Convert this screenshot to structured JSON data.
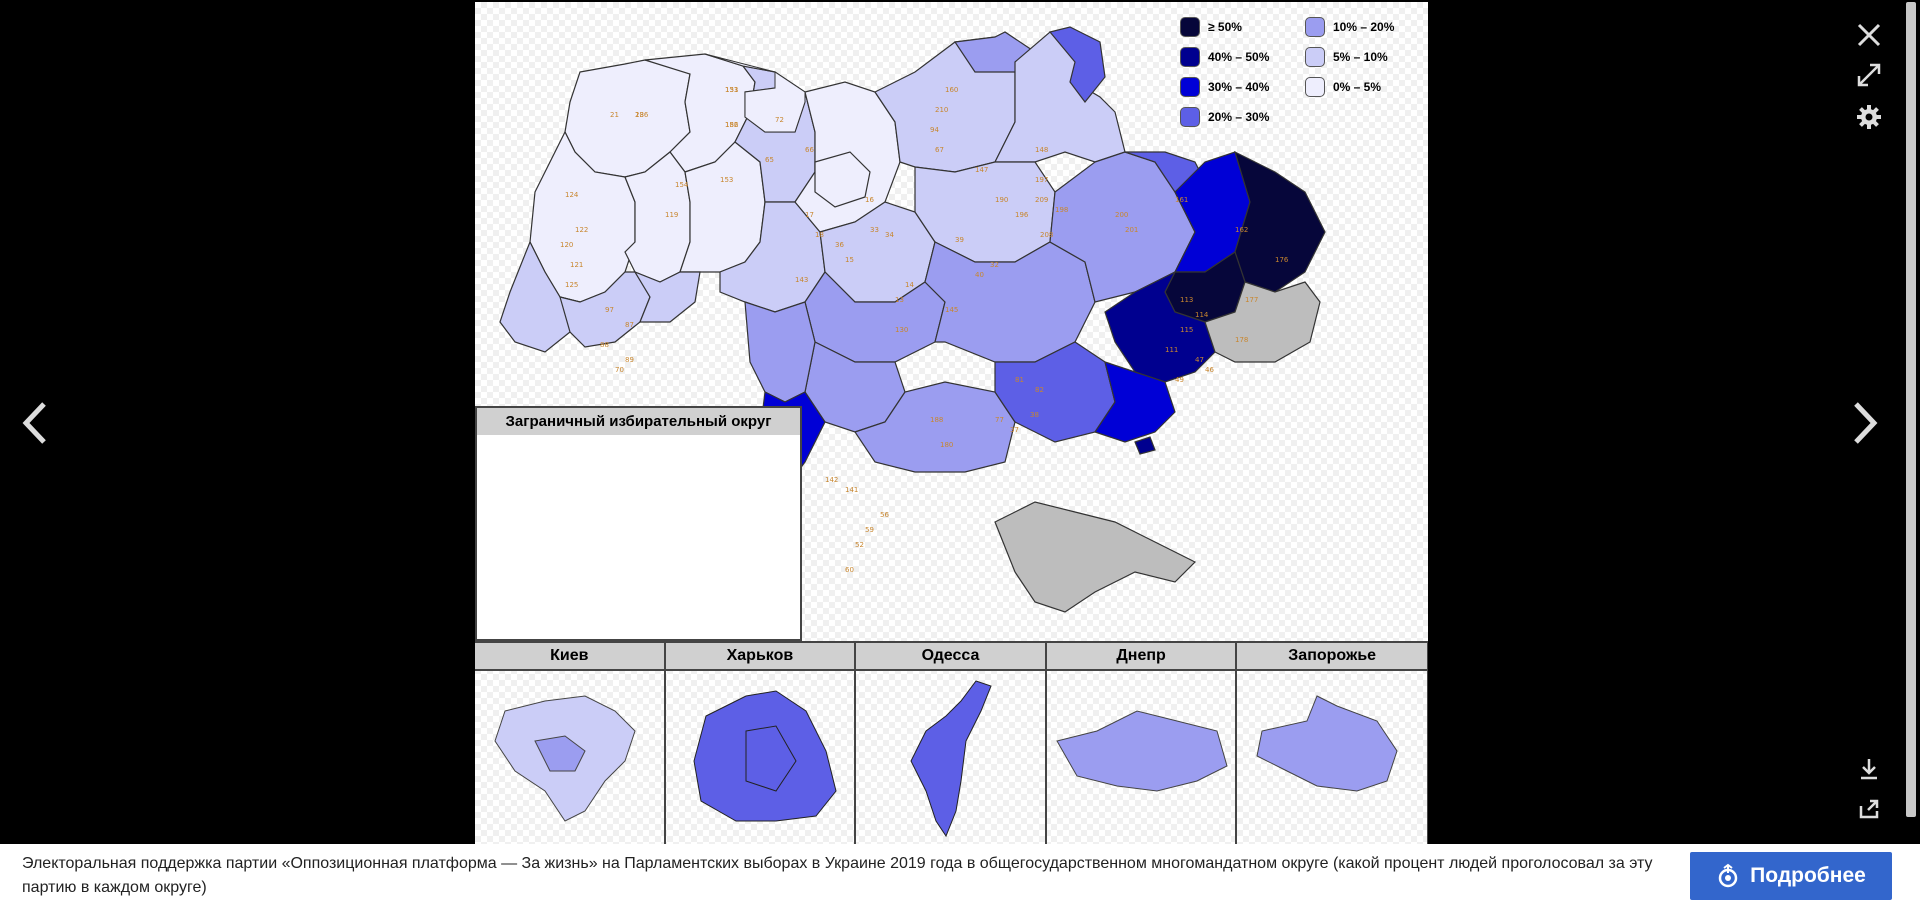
{
  "viewer": {
    "close_label": "×",
    "legend": [
      {
        "label": "≥ 50%",
        "color": "#06063a"
      },
      {
        "label": "10% – 20%",
        "color": "#9b9df0"
      },
      {
        "label": "40% – 50%",
        "color": "#00008f"
      },
      {
        "label": "5% – 10%",
        "color": "#cbcdf7"
      },
      {
        "label": "30% – 40%",
        "color": "#0000d6"
      },
      {
        "label": "0% – 5%",
        "color": "#eeeefd"
      },
      {
        "label": "20% – 30%",
        "color": "#5d5fe6"
      }
    ],
    "inset_title": "Заграничный избирательный округ",
    "cities": [
      {
        "name": "Киев"
      },
      {
        "name": "Харьков"
      },
      {
        "name": "Одесса"
      },
      {
        "name": "Днепр"
      },
      {
        "name": "Запорожье"
      }
    ],
    "district_labels": [
      "133",
      "156",
      "23",
      "21",
      "153",
      "154",
      "119",
      "124",
      "122",
      "120",
      "121",
      "125",
      "97",
      "87",
      "88",
      "89",
      "70",
      "72",
      "65",
      "66",
      "67",
      "94",
      "210",
      "209",
      "208",
      "160",
      "161",
      "162",
      "176",
      "177",
      "178",
      "113",
      "114",
      "115",
      "111",
      "47",
      "46",
      "49",
      "56",
      "59",
      "60",
      "52",
      "142",
      "141",
      "143",
      "145",
      "130",
      "188",
      "180",
      "81",
      "82",
      "77",
      "37",
      "38",
      "39",
      "40",
      "32",
      "33",
      "34",
      "36",
      "15",
      "16",
      "17",
      "18",
      "13",
      "14",
      "190",
      "196",
      "197",
      "198",
      "200",
      "201",
      "147",
      "148",
      "151",
      "182",
      "186"
    ]
  },
  "caption": {
    "text": "Электоральная поддержка партии «Оппозиционная платформа — За жизнь» на Парламентских выборах в Украине 2019 года в общегосударственном многомандатном округе (какой процент людей проголосовал за эту партию в каждом округе)",
    "button_label": "Подробнее"
  },
  "colors": {
    "accent": "#3366cc",
    "gray_region": "#bdbdbd"
  }
}
